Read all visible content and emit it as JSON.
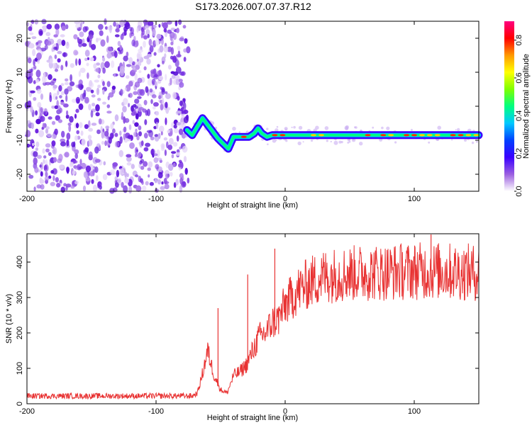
{
  "title": "S173.2026.007.07.37.R12",
  "chart_data": [
    {
      "type": "heatmap",
      "xlabel": "Height of straight line (km)",
      "ylabel": "Frequency (Hz)",
      "xlim": [
        -200,
        150
      ],
      "ylim": [
        -25,
        25
      ],
      "x_ticks": [
        -200,
        -100,
        0,
        100
      ],
      "x_tick_labels": [
        "-200",
        "-100",
        "0",
        "100"
      ],
      "y_ticks": [
        -20,
        -10,
        0,
        10,
        20
      ],
      "y_tick_labels": [
        "-20",
        "-10",
        "0",
        "10",
        "20"
      ],
      "noise_region_x": [
        -200,
        -75
      ],
      "ridge": {
        "x": [
          -76,
          -72,
          -68,
          -64,
          -60,
          -56,
          -52,
          -48,
          -44,
          -40,
          -36,
          -32,
          -28,
          -24,
          -21,
          -18,
          -14,
          -10,
          -5,
          0,
          10,
          20,
          30,
          50,
          80,
          110,
          150
        ],
        "y": [
          -7,
          -8.5,
          -6,
          -3.5,
          -5.5,
          -7.5,
          -9.5,
          -11,
          -12.5,
          -9,
          -9,
          -9,
          -9,
          -8,
          -6.5,
          -8,
          -9,
          -8.5,
          -8.5,
          -8.5,
          -8.5,
          -8.5,
          -8.5,
          -8.5,
          -8.5,
          -8.5,
          -8.5
        ]
      },
      "colorbar": {
        "label": "Normalized spectral amplitude",
        "range": [
          0,
          0.9
        ],
        "ticks": [
          0.0,
          0.2,
          0.4,
          0.6,
          0.8
        ],
        "tick_labels": [
          "0.0",
          "0.2",
          "0.4",
          "0.6",
          "0.8"
        ],
        "colors": [
          "#ffffff",
          "#9b5fe0",
          "#3a00ff",
          "#0040ff",
          "#00c8ff",
          "#00ff80",
          "#7fff00",
          "#ffff00",
          "#ff9900",
          "#ff0000",
          "#ff0080"
        ]
      }
    },
    {
      "type": "line",
      "xlabel": "Height of straight line (km)",
      "ylabel": "SNR (10 * v/v)",
      "xlim": [
        -200,
        150
      ],
      "ylim": [
        0,
        480
      ],
      "x_ticks": [
        -200,
        -100,
        0,
        100
      ],
      "x_tick_labels": [
        "-200",
        "-100",
        "0",
        "100"
      ],
      "y_ticks": [
        0,
        100,
        200,
        300,
        400
      ],
      "y_tick_labels": [
        "0",
        "100",
        "200",
        "300",
        "400"
      ],
      "series": [
        {
          "name": "SNR",
          "color": "#e83232",
          "envelope": {
            "x": [
              -200,
              -150,
              -100,
              -72,
              -68,
              -65,
              -60,
              -55,
              -50,
              -45,
              -40,
              -35,
              -30,
              -25,
              -20,
              -15,
              -10,
              -5,
              0,
              10,
              20,
              30,
              40,
              60,
              80,
              100,
              120,
              150
            ],
            "y": [
              22,
              22,
              22,
              22,
              30,
              70,
              150,
              80,
              40,
              30,
              80,
              90,
              110,
              150,
              190,
              200,
              230,
              240,
              280,
              320,
              345,
              360,
              365,
              370,
              372,
              375,
              375,
              370
            ]
          },
          "spikes": [
            {
              "x": -52,
              "y": 270
            },
            {
              "x": -29,
              "y": 365
            },
            {
              "x": -8,
              "y": 438
            },
            {
              "x": 113,
              "y": 478
            }
          ]
        }
      ]
    }
  ]
}
